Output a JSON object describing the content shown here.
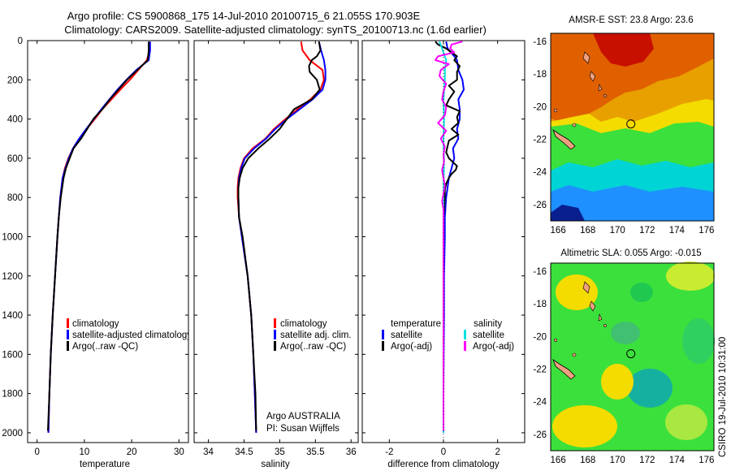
{
  "header": {
    "line1": "Argo profile: CS 5900868_175 14-Jul-2010 20100715_6 21.055S 170.903E",
    "line2": "Climatology: CARS2009. Satellite-adjusted climatology: synTS_20100713.nc (1.6d earlier)"
  },
  "side_label": "CSIRO 19-Jul-2010 10:31:00",
  "colors": {
    "climatology": "#ff0000",
    "satellite": "#0000ff",
    "argo": "#000000",
    "diff_temp_sat": "#00e0e0",
    "diff_sal_argo": "#ff00ff"
  },
  "chart_data": [
    {
      "type": "line",
      "panel": "temperature",
      "xlabel": "temperature",
      "xlim": [
        -2,
        32
      ],
      "xticks": [
        0,
        10,
        20,
        30
      ],
      "ylim": [
        2050,
        0
      ],
      "yticks": [
        0,
        200,
        400,
        600,
        800,
        1000,
        1200,
        1400,
        1600,
        1800,
        2000
      ],
      "legend": [
        "climatology",
        "satellite-adjusted climatology",
        "Argo(..raw -QC)"
      ],
      "series": [
        {
          "name": "climatology",
          "color": "#ff0000",
          "depth": [
            5,
            50,
            100,
            150,
            200,
            250,
            300,
            350,
            400,
            450,
            500,
            550,
            600,
            650,
            700,
            800,
            900,
            1000,
            1200,
            1400,
            1600,
            1800,
            2000
          ],
          "values": [
            23.8,
            23.8,
            23.2,
            21.4,
            19.6,
            17.6,
            15.7,
            13.8,
            12.2,
            10.5,
            8.9,
            7.6,
            6.6,
            5.9,
            5.4,
            4.9,
            4.6,
            4.3,
            3.8,
            3.3,
            2.9,
            2.6,
            2.4
          ]
        },
        {
          "name": "satellite-adjusted climatology",
          "color": "#0000ff",
          "depth": [
            5,
            50,
            100,
            150,
            200,
            250,
            300,
            350,
            400,
            450,
            500,
            550,
            600,
            650,
            700,
            800,
            900,
            1000,
            1200,
            1400,
            1600,
            1800,
            2000
          ],
          "values": [
            23.9,
            23.9,
            23.6,
            21.0,
            18.9,
            17.0,
            15.3,
            13.6,
            12.0,
            10.4,
            8.9,
            7.6,
            6.7,
            6.0,
            5.4,
            4.9,
            4.6,
            4.3,
            3.8,
            3.3,
            2.9,
            2.6,
            2.4
          ]
        },
        {
          "name": "Argo(..raw -QC)",
          "color": "#000000",
          "depth": [
            5,
            50,
            100,
            150,
            200,
            250,
            300,
            350,
            400,
            450,
            500,
            550,
            600,
            650,
            700,
            800,
            900,
            1000,
            1200,
            1400,
            1600,
            1800,
            1990
          ],
          "values": [
            23.6,
            23.6,
            23.4,
            21.2,
            19.0,
            17.2,
            15.4,
            13.8,
            11.9,
            10.6,
            9.3,
            7.7,
            6.9,
            6.1,
            5.6,
            5.0,
            4.6,
            4.3,
            3.8,
            3.3,
            2.9,
            2.6,
            2.3
          ]
        }
      ]
    },
    {
      "type": "line",
      "panel": "salinity",
      "xlabel": "salinity",
      "xlim": [
        33.8,
        36.1
      ],
      "xticks": [
        34,
        34.5,
        35,
        35.5,
        36
      ],
      "ylim": [
        2050,
        0
      ],
      "legend": [
        "climatology",
        "satellite adj. clim.",
        "Argo(..raw -QC)"
      ],
      "annotations": [
        "Argo AUSTRALIA",
        "PI: Susan Wijffels"
      ],
      "series": [
        {
          "name": "climatology",
          "color": "#ff0000",
          "depth": [
            5,
            50,
            100,
            150,
            200,
            250,
            300,
            350,
            400,
            450,
            500,
            550,
            600,
            650,
            700,
            750,
            800,
            900,
            1000,
            1200,
            1400,
            1600,
            1800,
            2000
          ],
          "values": [
            35.3,
            35.32,
            35.42,
            35.6,
            35.62,
            35.57,
            35.43,
            35.25,
            35.08,
            34.92,
            34.8,
            34.62,
            34.5,
            34.45,
            34.42,
            34.41,
            34.41,
            34.43,
            34.47,
            34.55,
            34.6,
            34.63,
            34.65,
            34.67
          ]
        },
        {
          "name": "satellite adj. clim.",
          "color": "#0000ff",
          "depth": [
            5,
            50,
            100,
            150,
            200,
            250,
            300,
            350,
            400,
            450,
            500,
            550,
            600,
            650,
            700,
            750,
            800,
            900,
            1000,
            1200,
            1400,
            1600,
            1800,
            2000
          ],
          "values": [
            35.55,
            35.58,
            35.62,
            35.64,
            35.64,
            35.6,
            35.46,
            35.28,
            35.1,
            34.94,
            34.81,
            34.64,
            34.51,
            34.46,
            34.43,
            34.42,
            34.42,
            34.43,
            34.47,
            34.55,
            34.6,
            34.63,
            34.65,
            34.67
          ]
        },
        {
          "name": "Argo(..raw -QC)",
          "color": "#000000",
          "depth": [
            5,
            50,
            80,
            100,
            130,
            160,
            200,
            250,
            300,
            350,
            400,
            450,
            500,
            550,
            600,
            650,
            700,
            750,
            800,
            900,
            1000,
            1200,
            1400,
            1600,
            1800,
            1990
          ],
          "values": [
            35.55,
            35.57,
            35.52,
            35.45,
            35.41,
            35.42,
            35.52,
            35.56,
            35.45,
            35.2,
            35.1,
            35.0,
            34.86,
            34.7,
            34.56,
            34.48,
            34.44,
            34.42,
            34.42,
            34.43,
            34.48,
            34.55,
            34.6,
            34.63,
            34.66,
            34.67
          ]
        }
      ]
    },
    {
      "type": "line",
      "panel": "difference",
      "xlabel": "difference from climatology",
      "xlim": [
        -3,
        3
      ],
      "xticks": [
        -2,
        0,
        2
      ],
      "ylim": [
        2050,
        0
      ],
      "legend": {
        "temperature_title": "temperature",
        "salinity_title": "salinity",
        "temperature": [
          "satellite",
          "Argo(-adj)"
        ],
        "salinity": [
          "satellite",
          "Argo(-adj)"
        ]
      },
      "series": [
        {
          "name": "temperature satellite",
          "color": "#0000ff",
          "depth": [
            5,
            40,
            80,
            100,
            150,
            200,
            250,
            300,
            350,
            400,
            450,
            500,
            550,
            600,
            650,
            700,
            800,
            900,
            1000,
            1200,
            1400,
            1600,
            1800,
            2000
          ],
          "values": [
            0.1,
            0.15,
            0.4,
            0.5,
            0.55,
            0.7,
            0.75,
            0.55,
            0.6,
            0.6,
            0.5,
            0.55,
            0.35,
            0.4,
            0.3,
            0.2,
            0.1,
            0.05,
            0.05,
            0.02,
            0.02,
            0.01,
            0.0,
            0.0
          ]
        },
        {
          "name": "temperature Argo(-adj)",
          "color": "#000000",
          "depth": [
            5,
            20,
            40,
            60,
            80,
            100,
            130,
            160,
            200,
            230,
            260,
            300,
            330,
            360,
            390,
            420,
            450,
            480,
            510,
            540,
            570,
            600,
            620,
            640,
            660,
            680,
            700,
            730,
            760,
            800,
            900,
            1000,
            1200,
            1400,
            1600,
            1800,
            1990
          ],
          "values": [
            -0.3,
            -0.2,
            0.1,
            0.3,
            0.5,
            0.4,
            0.6,
            0.5,
            0.5,
            0.2,
            0.4,
            0.2,
            0.1,
            0.6,
            0.5,
            0.55,
            0.3,
            0.55,
            0.2,
            0.15,
            0.1,
            0.2,
            0.35,
            0.5,
            0.45,
            0.3,
            0.2,
            0.1,
            0.05,
            0.05,
            0.0,
            0.0,
            0.0,
            0.0,
            0.0,
            0.0,
            0.0
          ]
        },
        {
          "name": "salinity satellite",
          "color": "#00e0e0",
          "depth": [
            5,
            40,
            100,
            150,
            200,
            300,
            400,
            500,
            600,
            700,
            800,
            1000,
            1200,
            1400,
            1600,
            1800,
            2000
          ],
          "values": [
            -0.15,
            -0.05,
            0.1,
            0.05,
            0.05,
            0.0,
            0.02,
            0.0,
            0.02,
            0.01,
            0.0,
            0.0,
            0.0,
            0.0,
            0.0,
            0.0,
            0.0
          ]
        },
        {
          "name": "salinity Argo(-adj)",
          "color": "#ff00ff",
          "depth": [
            5,
            20,
            40,
            60,
            80,
            100,
            120,
            150,
            180,
            220,
            260,
            300,
            340,
            380,
            420,
            460,
            500,
            540,
            580,
            620,
            660,
            700,
            740,
            780,
            820,
            860,
            900,
            1000,
            1200,
            1400,
            1600,
            1800,
            1990
          ],
          "values": [
            0.7,
            0.3,
            0.25,
            0.4,
            -0.2,
            -0.3,
            0.2,
            -0.1,
            -0.15,
            0.1,
            0.0,
            -0.05,
            0.1,
            0.05,
            -0.2,
            0.1,
            -0.1,
            0.05,
            0.0,
            0.02,
            -0.05,
            0.0,
            0.05,
            0.0,
            -0.05,
            0.0,
            0.0,
            0.0,
            0.0,
            0.0,
            0.0,
            0.0,
            0.0
          ]
        }
      ]
    },
    {
      "type": "heatmap",
      "panel": "sst_map",
      "title": "AMSR-E SST: 23.8 Argo: 23.6",
      "xlim": [
        165.5,
        176.5
      ],
      "xticks": [
        166,
        168,
        170,
        172,
        174,
        176
      ],
      "ylim": [
        -27,
        -15.5
      ],
      "yticks": [
        -16,
        -18,
        -20,
        -22,
        -24,
        -26
      ],
      "marker": {
        "lon": 170.903,
        "lat": -21.055
      }
    },
    {
      "type": "heatmap",
      "panel": "sla_map",
      "title": "Altimetric SLA: 0.055 Argo: -0.015",
      "xlim": [
        165.5,
        176.5
      ],
      "xticks": [
        166,
        168,
        170,
        172,
        174,
        176
      ],
      "ylim": [
        -27,
        -15.5
      ],
      "yticks": [
        -16,
        -18,
        -20,
        -22,
        -24,
        -26
      ],
      "marker": {
        "lon": 170.903,
        "lat": -21.055
      }
    }
  ]
}
